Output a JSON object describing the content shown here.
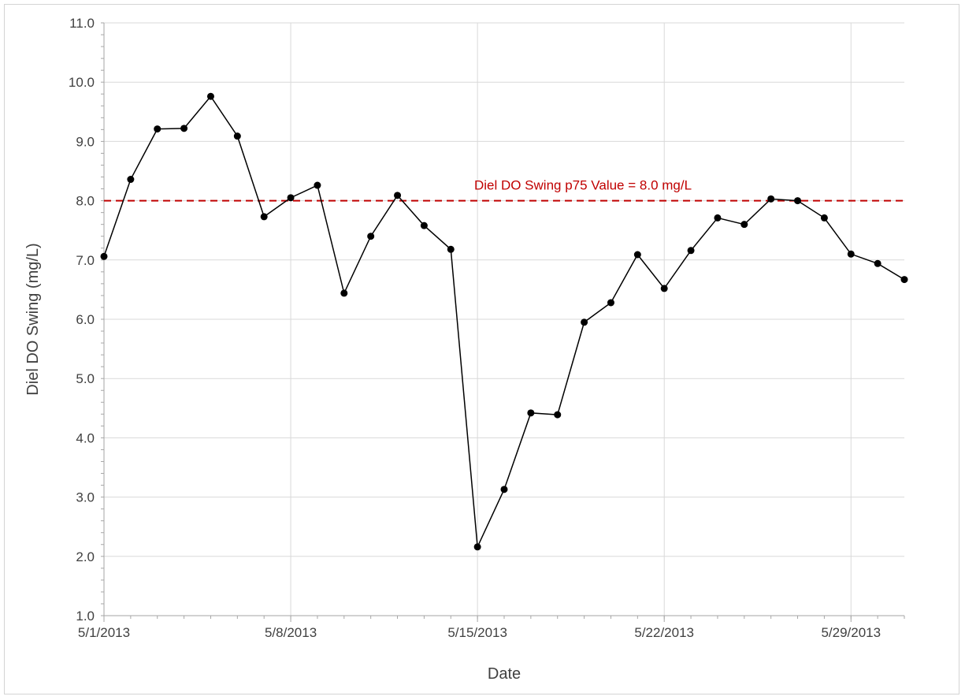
{
  "chart_data": {
    "type": "line",
    "title": "",
    "xlabel": "Date",
    "ylabel": "Diel DO Swing (mg/L)",
    "ylim": [
      1.0,
      11.0
    ],
    "xlim": [
      "5/1/2013",
      "5/31/2013"
    ],
    "y_ticks": [
      "1.0",
      "2.0",
      "3.0",
      "4.0",
      "5.0",
      "6.0",
      "7.0",
      "8.0",
      "9.0",
      "10.0",
      "11.0"
    ],
    "x_tick_labels": [
      "5/1/2013",
      "5/8/2013",
      "5/15/2013",
      "5/22/2013",
      "5/29/2013"
    ],
    "x_minor_ticks": "daily",
    "grid": true,
    "legend": "none",
    "series": [
      {
        "color": "#000000",
        "marker": "circle",
        "x": [
          "5/1/2013",
          "5/2/2013",
          "5/3/2013",
          "5/4/2013",
          "5/5/2013",
          "5/6/2013",
          "5/7/2013",
          "5/8/2013",
          "5/9/2013",
          "5/10/2013",
          "5/11/2013",
          "5/12/2013",
          "5/13/2013",
          "5/14/2013",
          "5/15/2013",
          "5/16/2013",
          "5/17/2013",
          "5/18/2013",
          "5/19/2013",
          "5/20/2013",
          "5/21/2013",
          "5/22/2013",
          "5/23/2013",
          "5/24/2013",
          "5/25/2013",
          "5/26/2013",
          "5/27/2013",
          "5/28/2013",
          "5/29/2013",
          "5/30/2013",
          "5/31/2013"
        ],
        "values": [
          7.06,
          8.36,
          9.21,
          9.22,
          9.76,
          9.09,
          7.73,
          8.05,
          8.26,
          6.44,
          7.4,
          8.09,
          7.58,
          7.18,
          2.16,
          3.13,
          4.42,
          4.39,
          5.95,
          6.28,
          7.09,
          6.52,
          7.16,
          7.71,
          7.6,
          8.03,
          8.0,
          7.71,
          7.1,
          6.94,
          6.67
        ]
      }
    ],
    "reference_line": {
      "value": 8.0,
      "label": "Diel DO Swing p75 Value = 8.0 mg/L",
      "color": "#c00000",
      "style": "dashed"
    }
  }
}
